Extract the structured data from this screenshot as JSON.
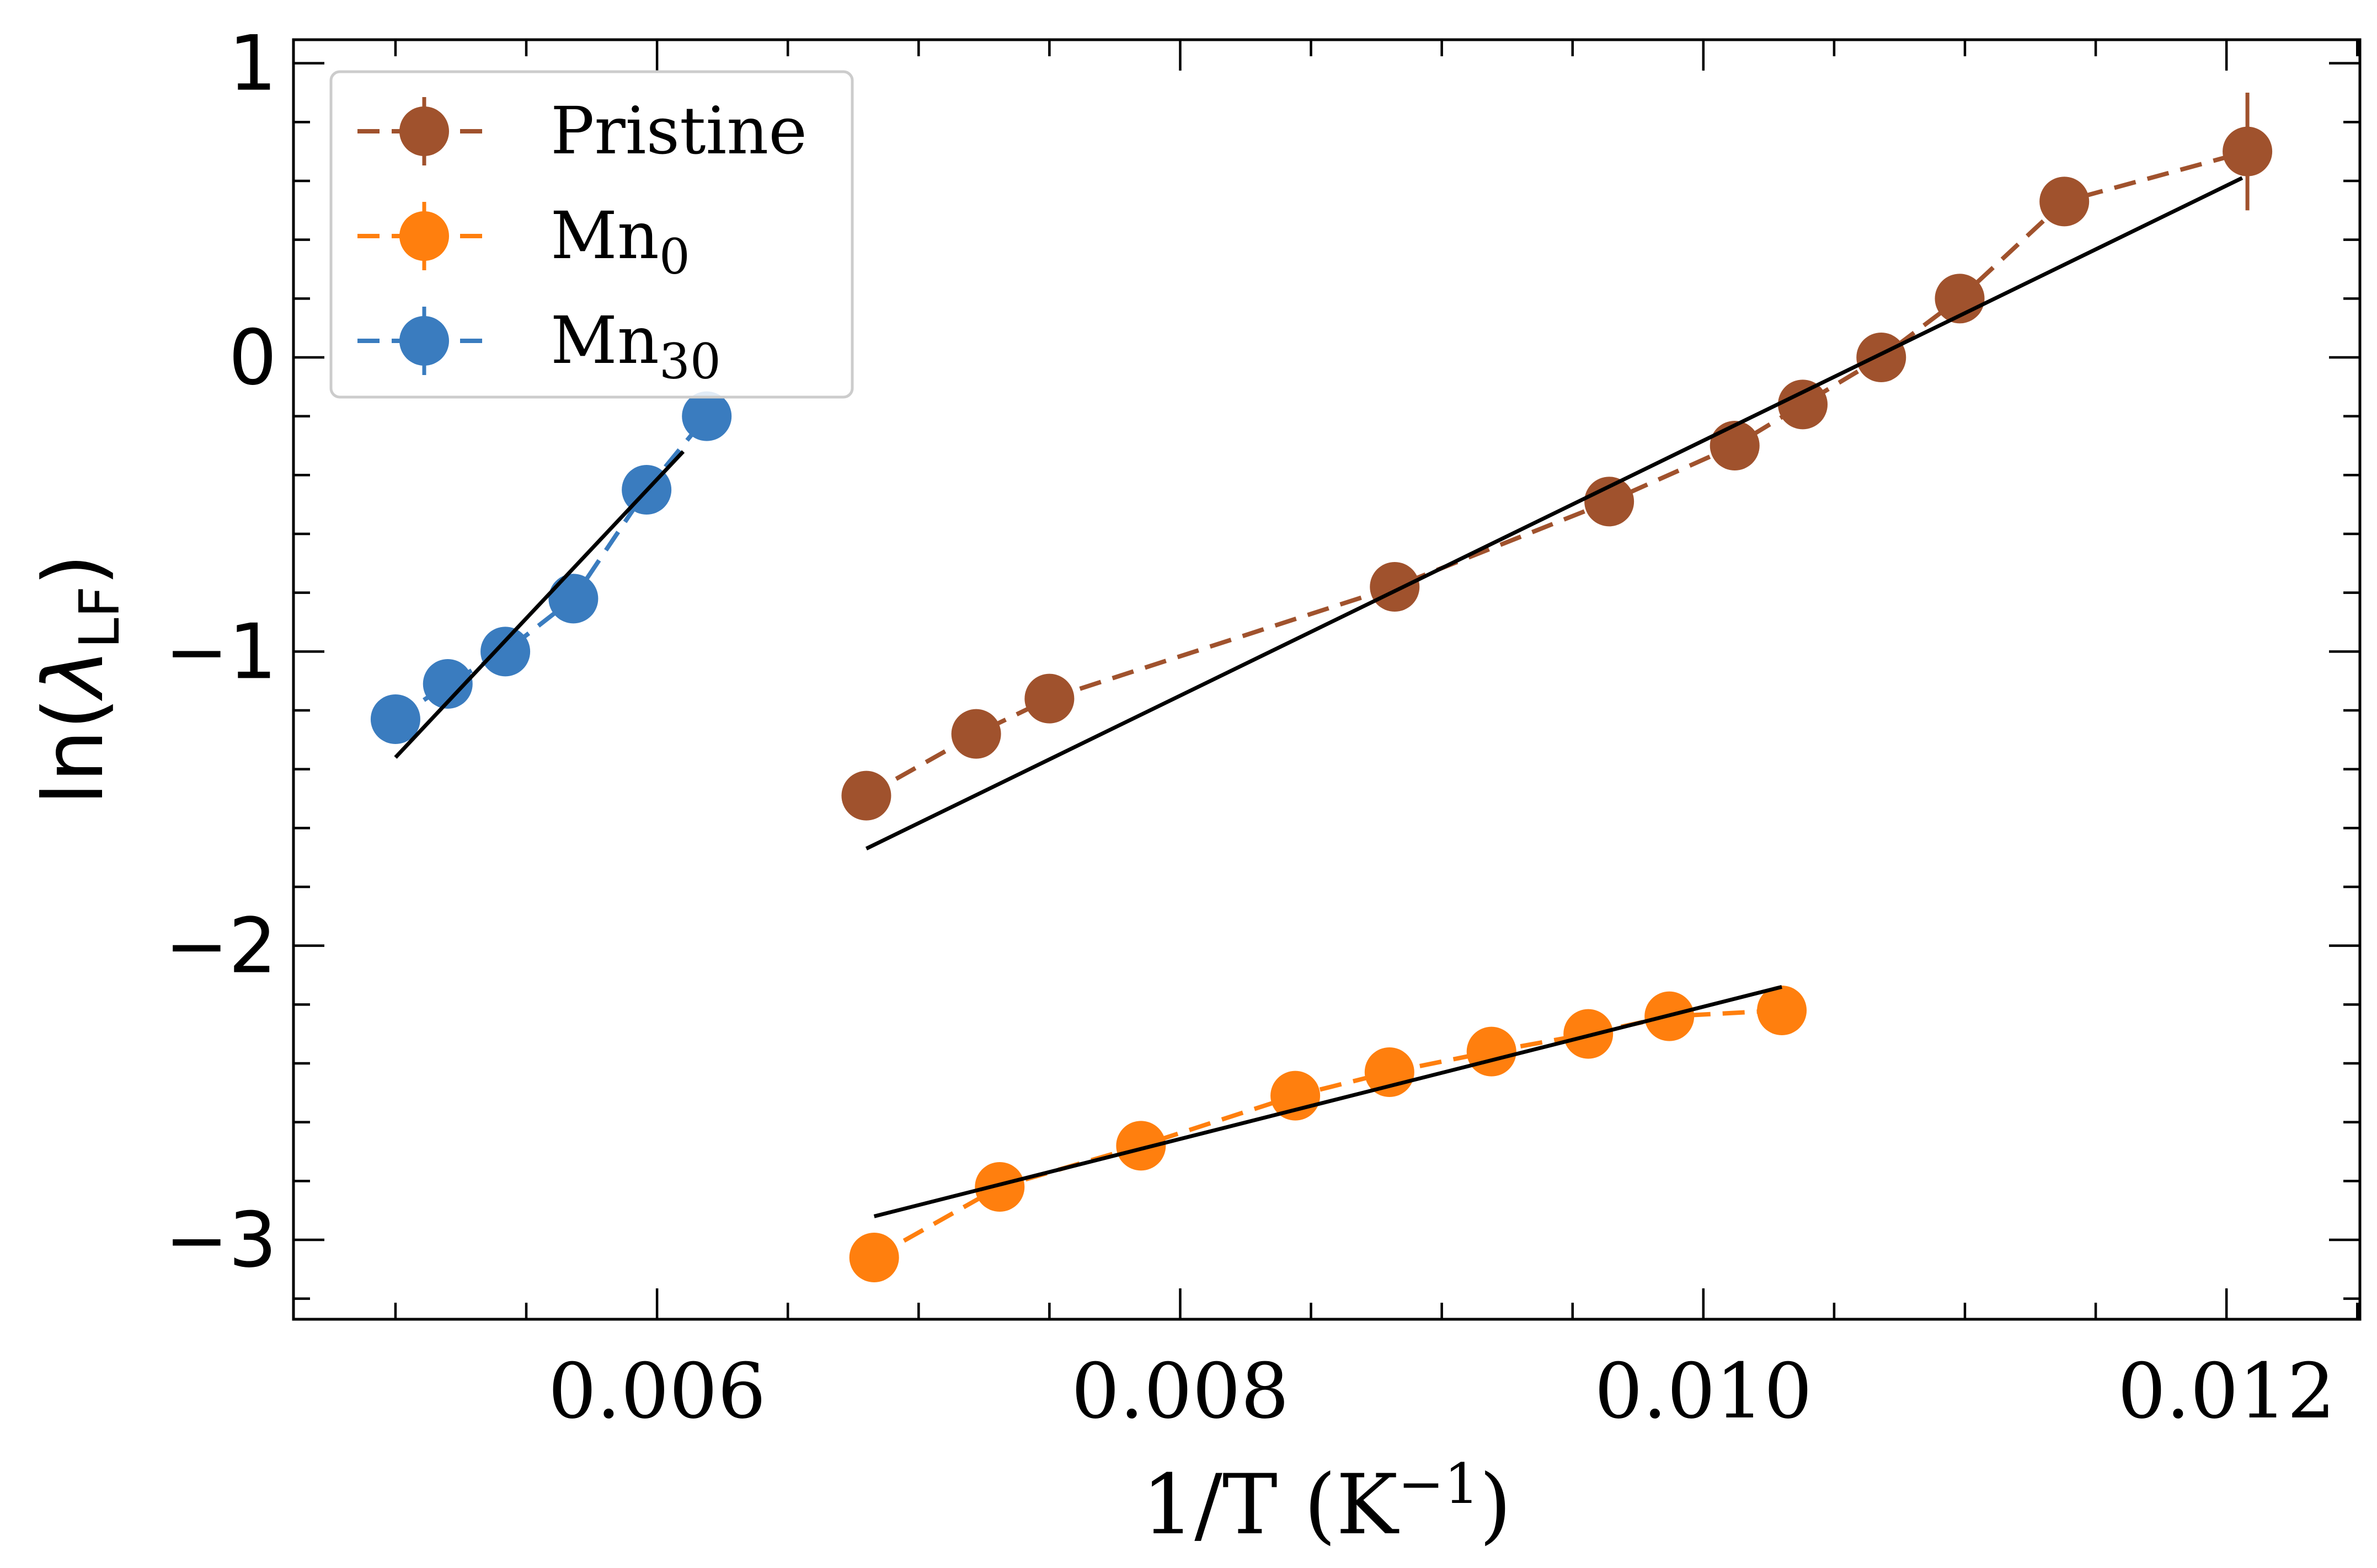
{
  "chart_data": {
    "type": "scatter",
    "title": "",
    "xlabel": {
      "main": "1/T (K",
      "sup": "−1",
      "close": ")"
    },
    "ylabel": {
      "pre": "ln(",
      "greek": "λ",
      "sub": "LF",
      "close": ")"
    },
    "xlim": [
      0.00461,
      0.01251
    ],
    "ylim": [
      -3.27,
      1.08
    ],
    "x_major_ticks": [
      0.006,
      0.008,
      0.01,
      0.012
    ],
    "x_tick_labels": [
      "0.006",
      "0.008",
      "0.010",
      "0.012"
    ],
    "x_minor_step": 0.0005,
    "y_major_ticks": [
      1,
      0,
      -1,
      -2,
      -3
    ],
    "y_tick_labels": [
      "1",
      "0",
      "−1",
      "−2",
      "−3"
    ],
    "y_minor_step": 0.2,
    "legend_position": "top-left",
    "series": [
      {
        "name": "Pristine",
        "legend": {
          "base": "Pristine",
          "sub": ""
        },
        "color": "#a0522d",
        "x": [
          0.0068,
          0.00722,
          0.0075,
          0.00882,
          0.00964,
          0.01012,
          0.01038,
          0.01068,
          0.01098,
          0.01138,
          0.01208
        ],
        "y": [
          -1.49,
          -1.28,
          -1.16,
          -0.78,
          -0.49,
          -0.3,
          -0.16,
          0.0,
          0.2,
          0.53,
          0.7
        ],
        "yerr": [
          0.02,
          0.02,
          0.02,
          0.02,
          0.02,
          0.02,
          0.02,
          0.02,
          0.02,
          0.03,
          0.2
        ],
        "fit": {
          "x": [
            0.0068,
            0.01206
          ],
          "y": [
            -1.67,
            0.61
          ]
        }
      },
      {
        "name": "Mn0",
        "legend": {
          "base": "Mn",
          "sub": "0"
        },
        "color": "#ff7f0e",
        "x": [
          0.00683,
          0.00731,
          0.00785,
          0.00844,
          0.0088,
          0.00919,
          0.00956,
          0.00987,
          0.0103
        ],
        "y": [
          -3.06,
          -2.82,
          -2.68,
          -2.51,
          -2.43,
          -2.36,
          -2.3,
          -2.24,
          -2.22
        ],
        "yerr": [
          0.02,
          0.02,
          0.02,
          0.02,
          0.02,
          0.02,
          0.02,
          0.02,
          0.02
        ],
        "fit": {
          "x": [
            0.00683,
            0.0103
          ],
          "y": [
            -2.92,
            -2.14
          ]
        }
      },
      {
        "name": "Mn30",
        "legend": {
          "base": "Mn",
          "sub": "30"
        },
        "color": "#3a7cbf",
        "x": [
          0.005,
          0.0052,
          0.00542,
          0.00568,
          0.00596,
          0.00619
        ],
        "y": [
          -1.23,
          -1.11,
          -1.0,
          -0.82,
          -0.45,
          -0.2
        ],
        "yerr": [
          0.02,
          0.02,
          0.02,
          0.02,
          0.02,
          0.02
        ],
        "fit": {
          "x": [
            0.005,
            0.0061
          ],
          "y": [
            -1.36,
            -0.32
          ]
        }
      }
    ],
    "fit_line_color": "#000000"
  }
}
